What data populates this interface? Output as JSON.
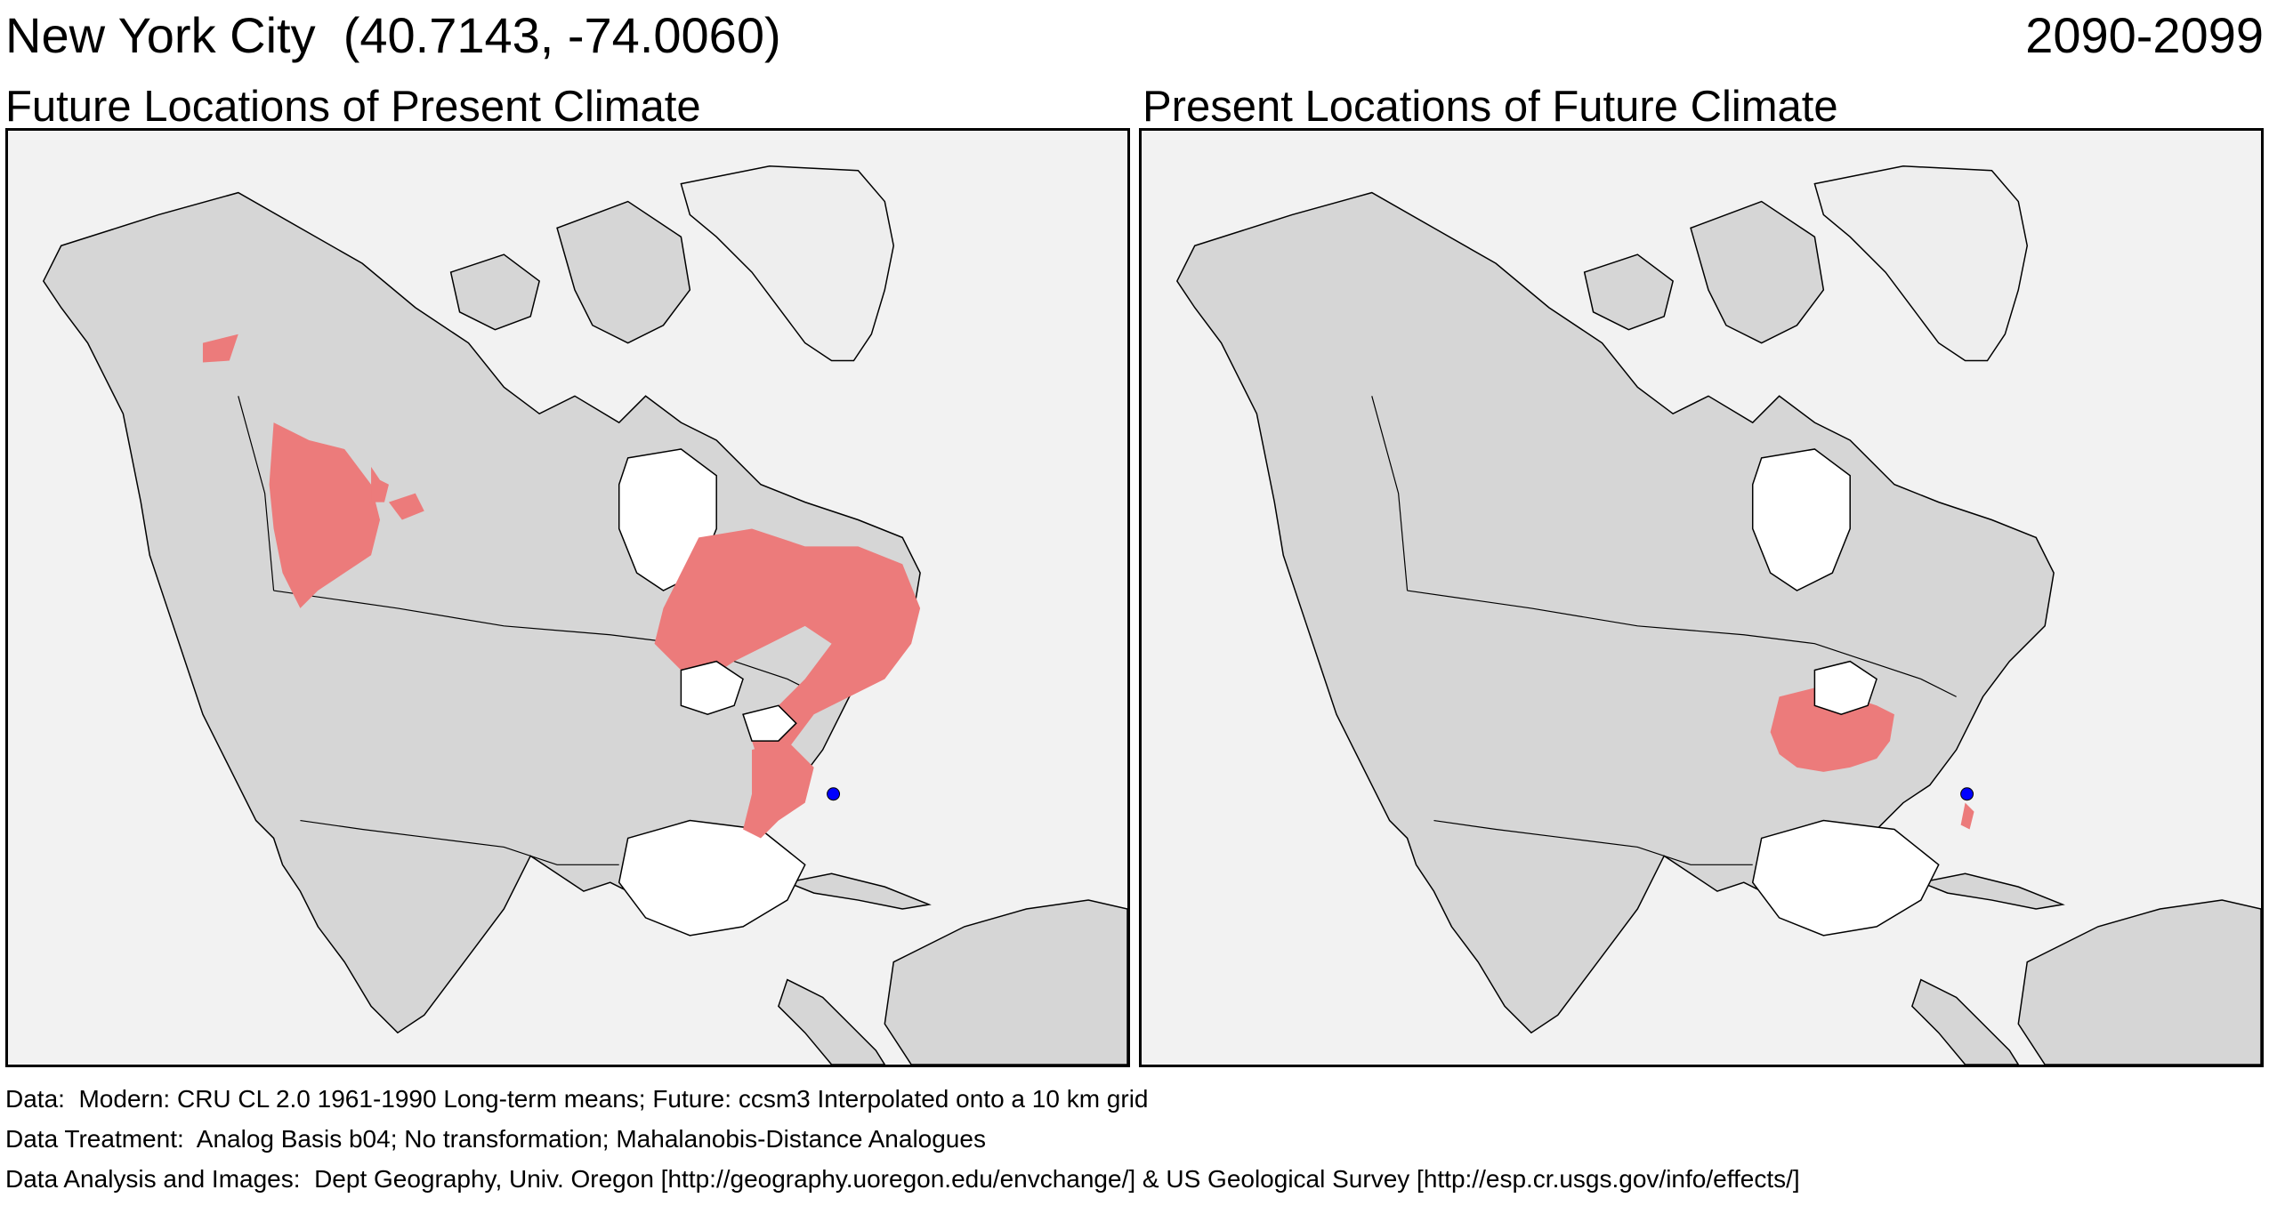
{
  "header": {
    "location_title": "New York City  (40.7143, -74.0060)",
    "period": "2090-2099"
  },
  "panels": [
    {
      "title": "Future Locations of Present Climate"
    },
    {
      "title": "Present Locations of Future Climate"
    }
  ],
  "map_colors": {
    "ocean": "#f2f2f2",
    "land": "#d6d6d6",
    "ice": "#eeeeee",
    "analog_area": "#ec7b7b",
    "city_marker": "#0000ff",
    "borders": "#000000"
  },
  "marker": {
    "city": "New York City",
    "lat": 40.7143,
    "lon": -74.006
  },
  "footer": {
    "data": "Data:  Modern: CRU CL 2.0 1961-1990 Long-term means; Future: ccsm3 Interpolated onto a 10 km grid",
    "treatment": "Data Treatment:  Analog Basis b04; No transformation; Mahalanobis-Distance Analogues",
    "analysis": "Data Analysis and Images:  Dept Geography, Univ. Oregon [http://geography.uoregon.edu/envchange/] & US Geological Survey [http://esp.cr.usgs.gov/info/effects/]"
  }
}
